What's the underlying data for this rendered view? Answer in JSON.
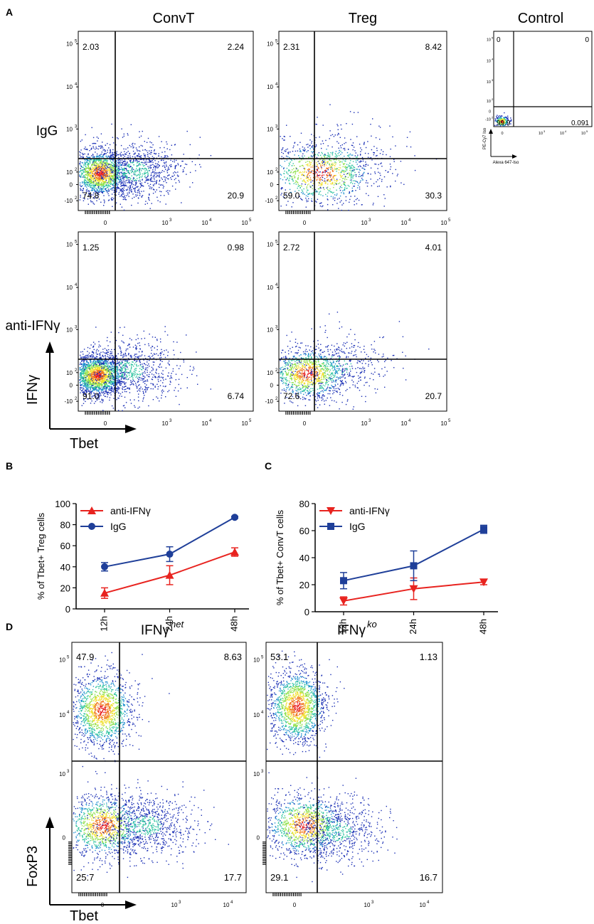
{
  "figure": {
    "panel_labels": [
      "A",
      "B",
      "C",
      "D"
    ],
    "tick_labels": {
      "log5": [
        "10",
        "10",
        "10",
        "10",
        "0",
        "-10"
      ],
      "log5_exp": [
        "5",
        "4",
        "3",
        "2",
        "",
        "2"
      ],
      "xlog": [
        "0",
        "10",
        "10",
        "10"
      ],
      "xlog_exp": [
        "",
        "3",
        "4",
        "5"
      ]
    }
  },
  "panel_a": {
    "col_titles": [
      "ConvT",
      "Treg",
      "Control"
    ],
    "row_labels": [
      "IgG",
      "anti-IFNγ"
    ],
    "axis_y": "IFNγ",
    "axis_x": "Tbet",
    "plots": [
      {
        "id": "convt-igg",
        "q": [
          "2.03",
          "2.24",
          "74.8",
          "20.9"
        ]
      },
      {
        "id": "treg-igg",
        "q": [
          "2.31",
          "8.42",
          "59.0",
          "30.3"
        ]
      },
      {
        "id": "convt-anti",
        "q": [
          "1.25",
          "0.98",
          "91.0",
          "6.74"
        ]
      },
      {
        "id": "treg-anti",
        "q": [
          "2.72",
          "4.01",
          "72.6",
          "20.7"
        ]
      }
    ],
    "control": {
      "q": [
        "0",
        "0",
        "99.9",
        "0.091"
      ],
      "y_label": "PE-Cy7 Iso",
      "x_label": "Alexa 647-Iso",
      "y_ticks": [
        "10",
        "10",
        "10",
        "10",
        "0",
        "-10"
      ],
      "y_exp": [
        "5",
        "4",
        "3",
        "2",
        "",
        "2"
      ],
      "x_ticks": [
        "0",
        "10",
        "10",
        "10"
      ],
      "x_exp": [
        "",
        "3",
        "4",
        "5"
      ]
    }
  },
  "chart_data": [
    {
      "type": "line",
      "panel": "B",
      "title": "",
      "xlabel": "",
      "ylabel": "% of Tbet+ Treg cells",
      "categories": [
        "12h",
        "24h",
        "48h"
      ],
      "ylim": [
        0,
        100
      ],
      "yticks": [
        "0",
        "20",
        "40",
        "60",
        "80",
        "100"
      ],
      "series": [
        {
          "name": "anti-IFNγ",
          "color": "#e8231f",
          "marker": "triangle-up",
          "values": [
            15,
            32,
            54
          ],
          "err": [
            5,
            9,
            4
          ]
        },
        {
          "name": "IgG",
          "color": "#1f3f99",
          "marker": "circle",
          "values": [
            40,
            52,
            87
          ],
          "err": [
            4,
            7,
            1
          ]
        }
      ]
    },
    {
      "type": "line",
      "panel": "C",
      "title": "",
      "xlabel": "",
      "ylabel": "% of Tbet+ ConvT cells",
      "categories": [
        "12h",
        "24h",
        "48h"
      ],
      "ylim": [
        0,
        80
      ],
      "yticks": [
        "0",
        "20",
        "40",
        "60",
        "80"
      ],
      "series": [
        {
          "name": "anti-IFNγ",
          "color": "#e8231f",
          "marker": "triangle-down",
          "values": [
            8,
            17,
            22
          ],
          "err": [
            3,
            8,
            2
          ]
        },
        {
          "name": "IgG",
          "color": "#1f3f99",
          "marker": "square",
          "values": [
            23,
            34,
            61
          ],
          "err": [
            6,
            11,
            3
          ]
        }
      ]
    }
  ],
  "panel_d": {
    "titles": [
      {
        "base": "IFNγ",
        "sup": "het"
      },
      {
        "base": "IFNγ",
        "sup": "ko"
      }
    ],
    "axis_y": "FoxP3",
    "axis_x": "Tbet",
    "plots": [
      {
        "id": "het",
        "q": [
          "47.9",
          "8.63",
          "25.7",
          "17.7"
        ]
      },
      {
        "id": "ko",
        "q": [
          "53.1",
          "1.13",
          "29.1",
          "16.7"
        ]
      }
    ],
    "x_ticks": [
      "0",
      "10",
      "10"
    ],
    "x_exp": [
      "",
      "3",
      "4"
    ],
    "y_ticks": [
      "10",
      "10",
      "10",
      "0"
    ],
    "y_exp": [
      "5",
      "4",
      "3",
      ""
    ]
  },
  "colors": {
    "red": "#e8231f",
    "blue": "#1f3f99",
    "dots": "#1a2fb5"
  }
}
